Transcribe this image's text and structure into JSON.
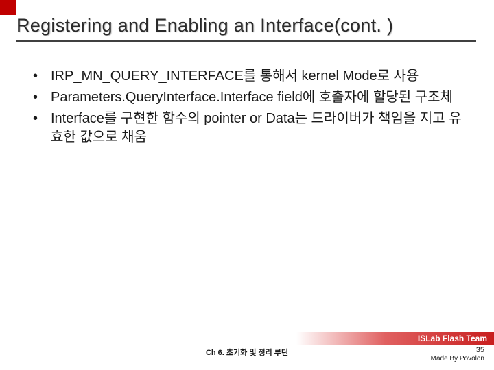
{
  "colors": {
    "accent_block": "#c00000",
    "title_text": "#2a2a2a",
    "underline": "#404040",
    "body_text": "#1a1a1a",
    "footer_grad_start": "#ffffff",
    "footer_grad_mid": "#e06060",
    "footer_grad_end": "#c81e1e",
    "footer_text": "#ffffff"
  },
  "title": "Registering and Enabling an Interface(cont. )",
  "bullets": [
    "IRP_MN_QUERY_INTERFACE를 통해서 kernel Mode로 사용",
    "Parameters.QueryInterface.Interface field에 호출자에 할당된 구조체",
    "Interface를 구현한 함수의 pointer or Data는 드라이버가 책임을 지고 유효한 값으로 채움"
  ],
  "footer": {
    "team": "ISLab Flash Team",
    "chapter": "Ch 6. 초기화 및 정리 루틴",
    "page": "35",
    "credit": "Made By Povolon"
  }
}
